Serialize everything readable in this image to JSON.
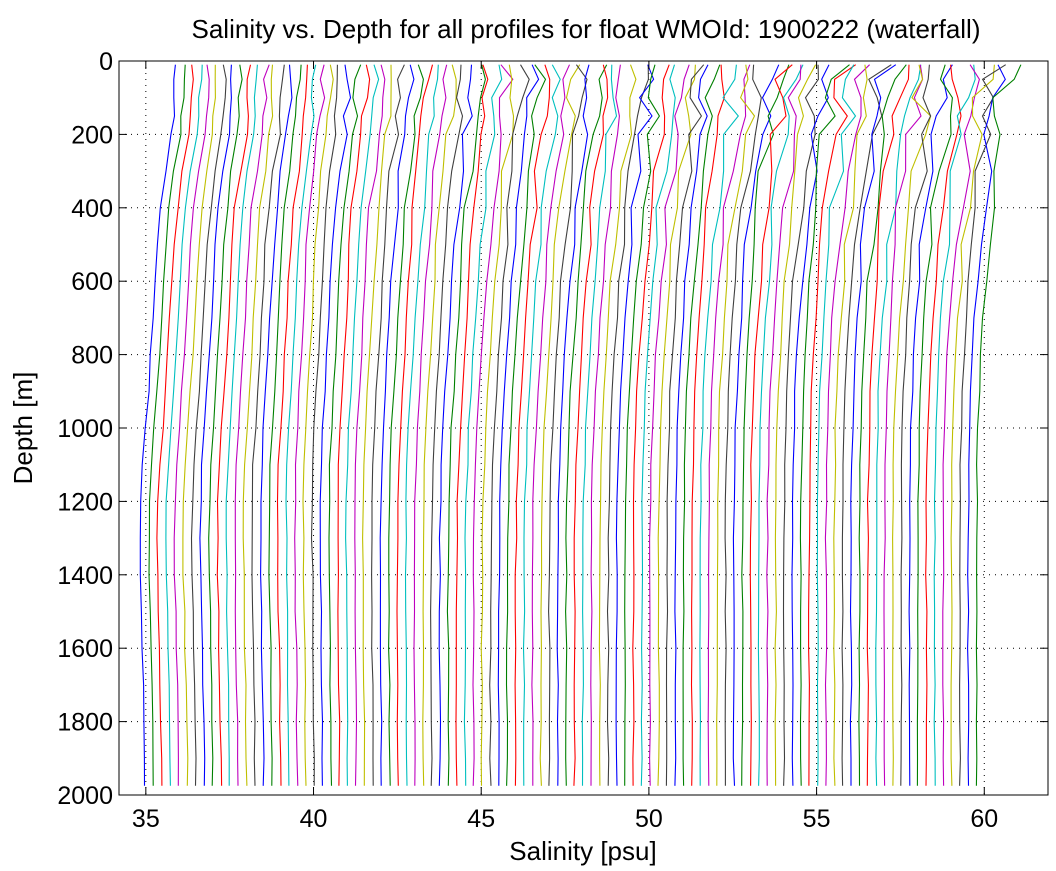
{
  "chart_data": {
    "type": "line",
    "title": "Salinity vs. Depth for all profiles for float WMOId: 1900222 (waterfall)",
    "xlabel": "Salinity [psu]",
    "ylabel": "Depth [m]",
    "xlim": [
      34.2,
      61.9
    ],
    "ylim": [
      0,
      2000
    ],
    "y_reversed": true,
    "grid": true,
    "x_ticks": [
      35,
      40,
      45,
      50,
      55,
      60
    ],
    "y_ticks": [
      0,
      200,
      400,
      600,
      800,
      1000,
      1200,
      1400,
      1600,
      1800,
      2000
    ],
    "x_tick_labels": [
      "35",
      "40",
      "45",
      "50",
      "55",
      "60"
    ],
    "y_tick_labels": [
      "0",
      "200",
      "400",
      "600",
      "800",
      "1000",
      "1200",
      "1400",
      "1600",
      "1800",
      "2000"
    ],
    "color_cycle": [
      "#0000ff",
      "#008000",
      "#ff0000",
      "#00bfbf",
      "#bf00bf",
      "#bfbf00",
      "#404040"
    ],
    "waterfall_offset_per_profile": 0.25,
    "profile_count": 100,
    "depths": [
      10,
      50,
      100,
      150,
      200,
      300,
      400,
      500,
      600,
      700,
      800,
      900,
      1000,
      1100,
      1200,
      1300,
      1400,
      1500,
      1600,
      1700,
      1800,
      1900,
      1975
    ],
    "series": [
      {
        "start": 35.0,
        "values": [
          35.9,
          35.88,
          35.85,
          35.82,
          35.78,
          35.6,
          35.45,
          35.35,
          35.28,
          35.22,
          35.15,
          35.08,
          35.0,
          34.9,
          34.85,
          34.83,
          34.84,
          34.87,
          34.9,
          34.93,
          34.95,
          34.97,
          34.98
        ]
      },
      {
        "start": 40.0,
        "values": [
          40.8,
          40.78,
          40.74,
          40.7,
          40.66,
          40.5,
          40.38,
          40.3,
          40.25,
          40.2,
          40.14,
          40.08,
          40.02,
          39.98,
          39.96,
          39.96,
          39.97,
          39.98,
          39.99,
          40.0,
          40.01,
          40.02,
          40.02
        ]
      },
      {
        "start": 45.0,
        "values": [
          46.0,
          46.05,
          45.95,
          45.9,
          45.82,
          45.7,
          45.6,
          45.5,
          45.42,
          45.35,
          45.28,
          45.2,
          45.14,
          45.1,
          45.06,
          45.04,
          45.03,
          45.02,
          45.02,
          45.02,
          45.02,
          45.02,
          45.02
        ]
      },
      {
        "start": 50.0,
        "values": [
          51.1,
          51.0,
          50.9,
          50.95,
          50.85,
          50.7,
          50.55,
          50.45,
          50.35,
          50.28,
          50.2,
          50.14,
          50.1,
          50.07,
          50.05,
          50.04,
          50.04,
          50.04,
          50.04,
          50.04,
          50.04,
          50.04,
          50.04
        ]
      },
      {
        "start": 55.0,
        "values": [
          56.2,
          56.0,
          55.9,
          56.05,
          55.8,
          55.65,
          55.5,
          55.4,
          55.3,
          55.22,
          55.16,
          55.1,
          55.07,
          55.05,
          55.04,
          55.03,
          55.03,
          55.03,
          55.03,
          55.03,
          55.03,
          55.03,
          55.03
        ]
      },
      {
        "start": 60.0,
        "values": [
          61.0,
          60.9,
          60.8,
          60.7,
          60.75,
          60.6,
          60.5,
          60.4,
          60.3,
          60.2,
          60.14,
          60.1,
          60.06,
          60.04,
          60.03,
          60.02,
          60.02,
          60.02,
          60.02,
          60.02,
          60.02,
          60.02,
          60.02
        ]
      }
    ]
  }
}
